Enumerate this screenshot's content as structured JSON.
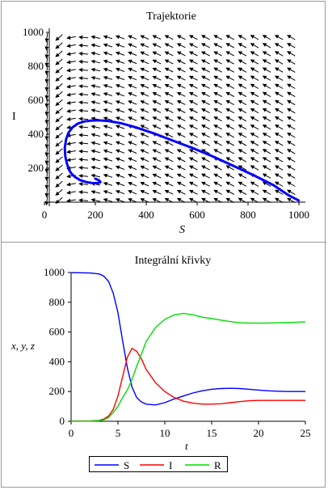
{
  "chart_data": [
    {
      "type": "line",
      "title": "Trajektorie",
      "xlabel": "S",
      "ylabel": "I",
      "xlim": [
        0,
        1000
      ],
      "ylim": [
        0,
        1000
      ],
      "xticks": [
        0,
        200,
        400,
        600,
        800,
        1000
      ],
      "yticks": [
        200,
        400,
        600,
        800,
        1000
      ],
      "grid": false,
      "background": "direction field (arrows)",
      "series": [
        {
          "color": "#0000ff",
          "x": [
            999,
            960,
            900,
            820,
            740,
            660,
            580,
            500,
            430,
            360,
            300,
            250,
            210,
            180,
            155,
            130,
            110,
            95,
            85,
            80,
            82,
            88,
            95,
            105,
            120,
            140,
            165,
            190,
            210,
            220,
            215,
            205,
            200
          ],
          "y": [
            10,
            40,
            100,
            160,
            215,
            270,
            320,
            365,
            405,
            440,
            465,
            478,
            482,
            480,
            475,
            462,
            440,
            410,
            370,
            320,
            270,
            230,
            195,
            170,
            148,
            130,
            118,
            112,
            112,
            118,
            128,
            135,
            138
          ]
        }
      ]
    },
    {
      "type": "line",
      "title": "Integrální křivky",
      "xlabel": "t",
      "ylabel": "x, y, z",
      "xlim": [
        0,
        25
      ],
      "ylim": [
        0,
        1000
      ],
      "xticks": [
        0,
        5,
        10,
        15,
        20,
        25
      ],
      "yticks": [
        0,
        200,
        400,
        600,
        800,
        1000
      ],
      "legend_position": "bottom",
      "grid": false,
      "series": [
        {
          "name": "S",
          "color": "#0000ff",
          "x": [
            0,
            2,
            3,
            3.5,
            4,
            4.5,
            5,
            5.5,
            6,
            6.5,
            7,
            7.5,
            8,
            9,
            10,
            11,
            12,
            13,
            14,
            15,
            16,
            17,
            18,
            19,
            20,
            21,
            22,
            23,
            24,
            25
          ],
          "y": [
            999,
            997,
            990,
            975,
            940,
            860,
            730,
            540,
            360,
            230,
            160,
            130,
            115,
            110,
            125,
            150,
            170,
            190,
            205,
            215,
            220,
            222,
            220,
            215,
            210,
            205,
            202,
            200,
            200,
            200
          ]
        },
        {
          "name": "I",
          "color": "#ff0000",
          "x": [
            0,
            2,
            3,
            3.5,
            4,
            4.5,
            5,
            5.5,
            6,
            6.5,
            7,
            7.5,
            8,
            9,
            10,
            11,
            12,
            13,
            14,
            15,
            16,
            17,
            18,
            19,
            20,
            21,
            22,
            23,
            24,
            25
          ],
          "y": [
            1,
            2,
            6,
            15,
            35,
            80,
            170,
            300,
            430,
            490,
            470,
            420,
            350,
            260,
            200,
            160,
            135,
            122,
            115,
            115,
            118,
            125,
            132,
            138,
            140,
            140,
            140,
            140,
            140,
            140
          ]
        },
        {
          "name": "R",
          "color": "#00dd00",
          "x": [
            0,
            2,
            3,
            3.5,
            4,
            4.5,
            5,
            5.5,
            6,
            6.5,
            7,
            7.5,
            8,
            9,
            10,
            11,
            12,
            13,
            14,
            15,
            16,
            17,
            18,
            19,
            20,
            21,
            22,
            23,
            24,
            25
          ],
          "y": [
            0,
            1,
            4,
            10,
            25,
            60,
            100,
            160,
            210,
            280,
            370,
            450,
            535,
            630,
            685,
            715,
            725,
            715,
            700,
            690,
            680,
            670,
            662,
            660,
            660,
            660,
            662,
            663,
            665,
            668
          ]
        }
      ]
    }
  ]
}
